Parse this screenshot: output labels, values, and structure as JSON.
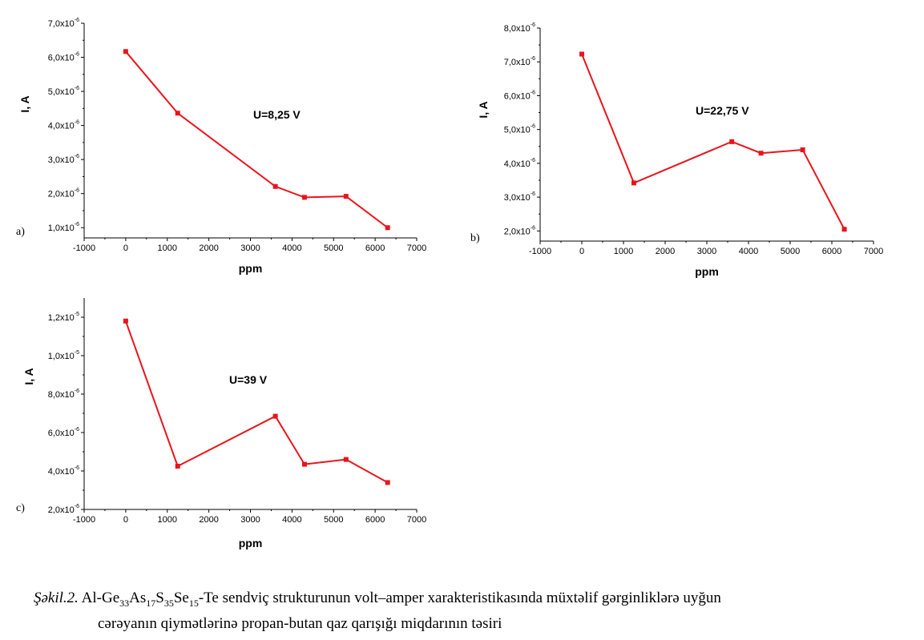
{
  "chart_data": [
    {
      "type": "line",
      "panel_label": "a)",
      "annotation": "U=8,25 V",
      "xlabel": "ppm",
      "ylabel": "I, A",
      "xlim": [
        -1000,
        7000
      ],
      "ylim": [
        7e-07,
        7e-06
      ],
      "xticks": [
        -1000,
        0,
        1000,
        2000,
        3000,
        4000,
        5000,
        6000,
        7000
      ],
      "yticks": [
        {
          "value": 1e-06,
          "mant": "1,0x10",
          "exp": "-6"
        },
        {
          "value": 2e-06,
          "mant": "2,0x10",
          "exp": "-6"
        },
        {
          "value": 3e-06,
          "mant": "3,0x10",
          "exp": "-6"
        },
        {
          "value": 4e-06,
          "mant": "4,0x10",
          "exp": "-6"
        },
        {
          "value": 5e-06,
          "mant": "5,0x10",
          "exp": "-6"
        },
        {
          "value": 6e-06,
          "mant": "6,0x10",
          "exp": "-6"
        },
        {
          "value": 7e-06,
          "mant": "7,0x10",
          "exp": "-6"
        }
      ],
      "x": [
        0,
        1250,
        3600,
        4300,
        5300,
        6300
      ],
      "y": [
        6.17e-06,
        4.36e-06,
        2.21e-06,
        1.89e-06,
        1.92e-06,
        1e-06
      ],
      "color": "#e8141c"
    },
    {
      "type": "line",
      "panel_label": "b)",
      "annotation": "U=22,75 V",
      "xlabel": "ppm",
      "ylabel": "I, A",
      "xlim": [
        -1000,
        7000
      ],
      "ylim": [
        1.7e-06,
        8e-06
      ],
      "xticks": [
        -1000,
        0,
        1000,
        2000,
        3000,
        4000,
        5000,
        6000,
        7000
      ],
      "yticks": [
        {
          "value": 2e-06,
          "mant": "2,0x10",
          "exp": "-6"
        },
        {
          "value": 3e-06,
          "mant": "3,0x10",
          "exp": "-6"
        },
        {
          "value": 4e-06,
          "mant": "4,0x10",
          "exp": "-6"
        },
        {
          "value": 5e-06,
          "mant": "5,0x10",
          "exp": "-6"
        },
        {
          "value": 6e-06,
          "mant": "6,0x10",
          "exp": "-6"
        },
        {
          "value": 7e-06,
          "mant": "7,0x10",
          "exp": "-6"
        },
        {
          "value": 8e-06,
          "mant": "8,0x10",
          "exp": "-6"
        }
      ],
      "x": [
        0,
        1250,
        3600,
        4300,
        5300,
        6300
      ],
      "y": [
        7.23e-06,
        3.42e-06,
        4.64e-06,
        4.3e-06,
        4.4e-06,
        2.05e-06
      ],
      "color": "#e8141c"
    },
    {
      "type": "line",
      "panel_label": "c)",
      "annotation": "U=39 V",
      "xlabel": "ppm",
      "ylabel": "I, A",
      "xlim": [
        -1000,
        7000
      ],
      "ylim": [
        2e-06,
        1.3e-05
      ],
      "xticks": [
        -1000,
        0,
        1000,
        2000,
        3000,
        4000,
        5000,
        6000,
        7000
      ],
      "yticks": [
        {
          "value": 2e-06,
          "mant": "2,0x10",
          "exp": "-6"
        },
        {
          "value": 4e-06,
          "mant": "4,0x10",
          "exp": "-6"
        },
        {
          "value": 6e-06,
          "mant": "6,0x10",
          "exp": "-6"
        },
        {
          "value": 8e-06,
          "mant": "8,0x10",
          "exp": "-6"
        },
        {
          "value": 1e-05,
          "mant": "1,0x10",
          "exp": "-5"
        },
        {
          "value": 1.2e-05,
          "mant": "1,2x10",
          "exp": "-5"
        }
      ],
      "x": [
        0,
        1250,
        3600,
        4300,
        5300,
        6300
      ],
      "y": [
        1.18e-05,
        4.25e-06,
        6.85e-06,
        4.35e-06,
        4.6e-06,
        3.4e-06
      ],
      "color": "#e8141c"
    }
  ],
  "caption": {
    "label": "Şəkil.2.",
    "text_a": " Al-Ge",
    "sub1": "33",
    "text_b": "As",
    "sub2": "17",
    "text_c": "S",
    "sub3": "35",
    "text_d": "Se",
    "sub4": "15",
    "text_e": "-Te sendviç strukturunun volt–amper xarakteristikasında müxtəlif gərginliklərə uyğun",
    "line2": "cərəyanın qiymətlərinə propan-butan qaz qarışığı miqdarının təsiri"
  }
}
